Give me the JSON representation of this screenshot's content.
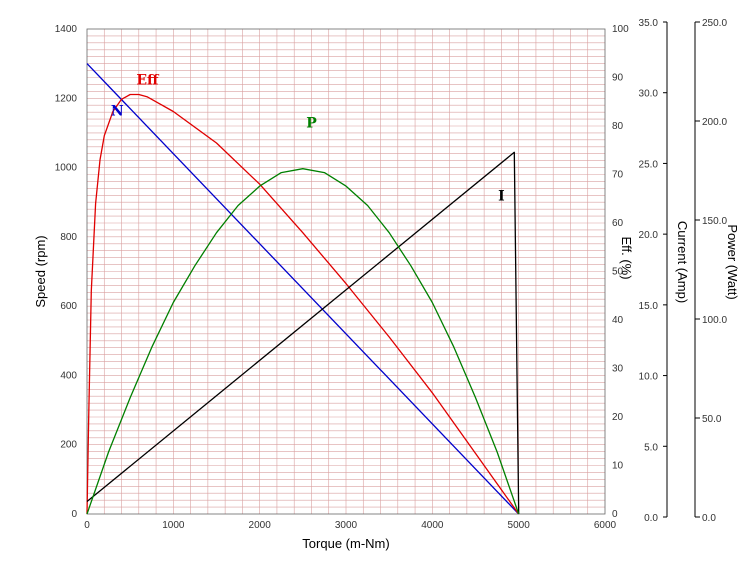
{
  "chart_data": {
    "type": "line",
    "xlabel": "Torque (m-Nm)",
    "xlim": [
      0,
      6000
    ],
    "x_ticks": [
      "0",
      "1000",
      "2000",
      "3000",
      "4000",
      "5000",
      "6000"
    ],
    "grid": true,
    "grid_color": "#d9a0a0",
    "axes": [
      {
        "label": "Speed (rpm)",
        "side": "left",
        "range": [
          0,
          1400
        ],
        "color": "#000000",
        "ticks": [
          "0",
          "200",
          "400",
          "600",
          "800",
          "1000",
          "1200",
          "1400"
        ]
      },
      {
        "label": "Eff. (%)",
        "side": "right",
        "range": [
          0,
          100
        ],
        "color": "#e00000",
        "ticks": [
          "0",
          "10",
          "20",
          "30",
          "40",
          "50",
          "60",
          "70",
          "80",
          "90",
          "100"
        ]
      },
      {
        "label": "Current (Amp)",
        "side": "right",
        "range": [
          0,
          35
        ],
        "color": "#000000",
        "ticks": [
          "0.0",
          "5.0",
          "10.0",
          "15.0",
          "20.0",
          "25.0",
          "30.0",
          "35.0"
        ]
      },
      {
        "label": "Power (Watt)",
        "side": "right",
        "range": [
          0,
          250
        ],
        "color": "#008000",
        "ticks": [
          "0.0",
          "50.0",
          "100.0",
          "150.0",
          "200.0",
          "250.0"
        ]
      }
    ],
    "series": [
      {
        "name": "N",
        "axis": 0,
        "color": "#0000cc",
        "x": [
          0,
          5000
        ],
        "y": [
          1300,
          0
        ]
      },
      {
        "name": "Eff",
        "axis": 1,
        "color": "#e00000",
        "x": [
          0,
          20,
          50,
          100,
          150,
          200,
          300,
          400,
          500,
          600,
          700,
          800,
          1000,
          1500,
          2000,
          2500,
          3000,
          3500,
          4000,
          4500,
          4800,
          5000
        ],
        "y": [
          0,
          20,
          46,
          64,
          73,
          78,
          83,
          85.5,
          86.5,
          86.5,
          86,
          85,
          83,
          76.5,
          68,
          58,
          47.5,
          36.5,
          25,
          12.5,
          5,
          0
        ]
      },
      {
        "name": "I",
        "axis": 2,
        "color": "#000000",
        "x": [
          0,
          4950,
          5000
        ],
        "y": [
          0.9,
          26.1,
          0
        ]
      },
      {
        "name": "P",
        "axis": 3,
        "color": "#008000",
        "x": [
          0,
          250,
          500,
          750,
          1000,
          1250,
          1500,
          1750,
          2000,
          2250,
          2500,
          2750,
          3000,
          3250,
          3500,
          3750,
          4000,
          4250,
          4500,
          4750,
          5000
        ],
        "y": [
          0,
          32,
          60,
          86,
          109,
          128,
          145,
          159,
          169,
          176,
          178,
          176,
          169,
          159,
          145,
          128,
          109,
          86,
          60,
          32,
          0
        ]
      }
    ],
    "series_labels": [
      {
        "text": "N",
        "color": "#0000cc",
        "x": 350,
        "y": 1150
      },
      {
        "text": "Eff",
        "color": "#e00000",
        "x": 700,
        "y": 1240
      },
      {
        "text": "P",
        "color": "#008000",
        "x": 2600,
        "y": 1115
      },
      {
        "text": "I",
        "color": "#000000",
        "x": 4800,
        "y": 905
      }
    ]
  }
}
